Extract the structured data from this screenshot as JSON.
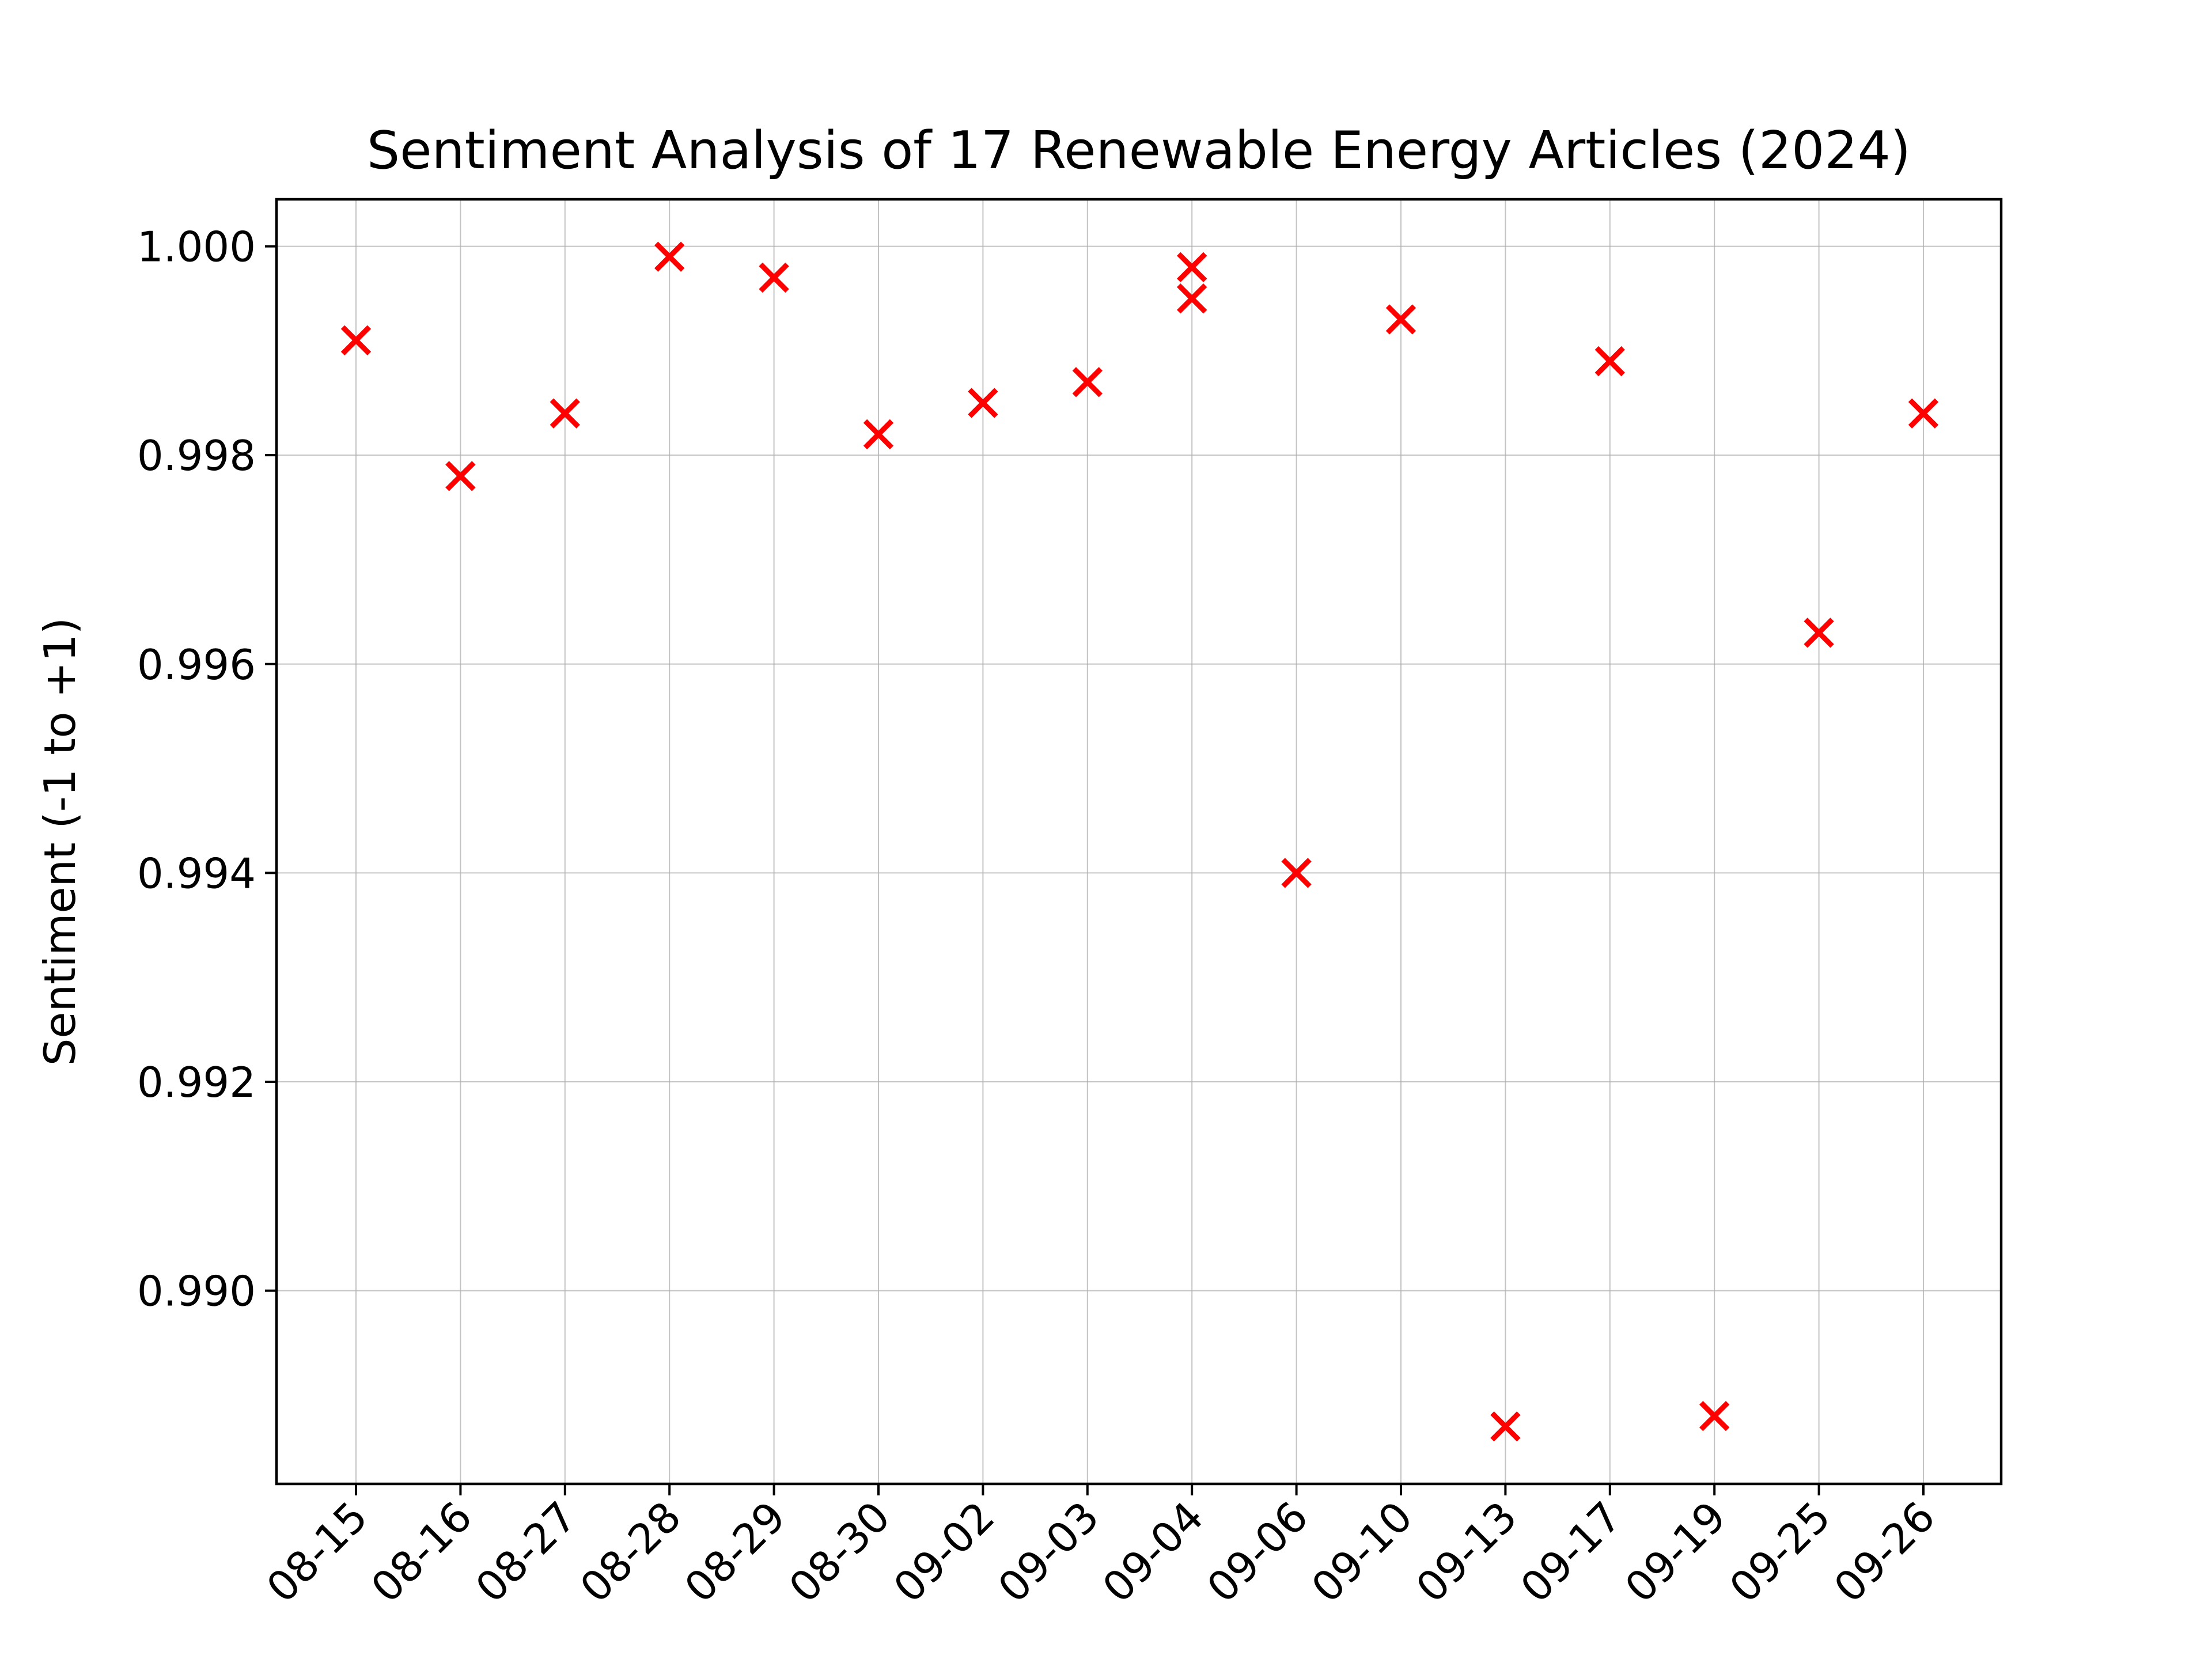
{
  "chart_data": {
    "type": "scatter",
    "title": "Sentiment Analysis of 17 Renewable Energy Articles (2024)",
    "xlabel": "",
    "ylabel": "Sentiment (-1 to +1)",
    "categories": [
      "08-15",
      "08-16",
      "08-27",
      "08-28",
      "08-29",
      "08-30",
      "09-02",
      "09-03",
      "09-04",
      "09-06",
      "09-10",
      "09-13",
      "09-17",
      "09-19",
      "09-25",
      "09-26"
    ],
    "points": [
      {
        "x": "08-15",
        "y": 0.9991
      },
      {
        "x": "08-16",
        "y": 0.9978
      },
      {
        "x": "08-27",
        "y": 0.9984
      },
      {
        "x": "08-28",
        "y": 0.9999
      },
      {
        "x": "08-29",
        "y": 0.9997
      },
      {
        "x": "08-30",
        "y": 0.9982
      },
      {
        "x": "09-02",
        "y": 0.9985
      },
      {
        "x": "09-03",
        "y": 0.9987
      },
      {
        "x": "09-04",
        "y": 0.9998
      },
      {
        "x": "09-04",
        "y": 0.9995
      },
      {
        "x": "09-06",
        "y": 0.994
      },
      {
        "x": "09-10",
        "y": 0.9993
      },
      {
        "x": "09-13",
        "y": 0.9887
      },
      {
        "x": "09-17",
        "y": 0.9989
      },
      {
        "x": "09-19",
        "y": 0.9888
      },
      {
        "x": "09-25",
        "y": 0.9963
      },
      {
        "x": "09-26",
        "y": 0.9984
      }
    ],
    "yticks": [
      "0.990",
      "0.992",
      "0.994",
      "0.996",
      "0.998",
      "1.000"
    ],
    "ylim": [
      0.98815,
      1.00045
    ],
    "grid": true,
    "marker": "x",
    "marker_color": "#ff0000"
  }
}
